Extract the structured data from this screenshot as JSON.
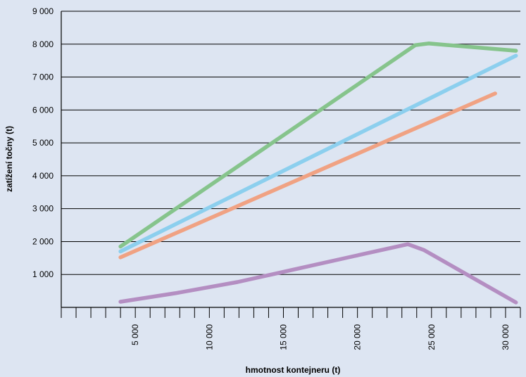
{
  "chart_data": {
    "type": "line",
    "title": "",
    "xlabel": "hmotnost kontejneru (t)",
    "ylabel": "zatížení točny (t)",
    "xlim": [
      0,
      31000
    ],
    "ylim": [
      0,
      9000
    ],
    "x_tick_labels": [
      {
        "value": 5000,
        "label": "5 000"
      },
      {
        "value": 10000,
        "label": "10 000"
      },
      {
        "value": 15000,
        "label": "15 000"
      },
      {
        "value": 20000,
        "label": "20 000"
      },
      {
        "value": 25000,
        "label": "25 000"
      },
      {
        "value": 30000,
        "label": "30 000"
      }
    ],
    "y_tick_labels": [
      {
        "value": 1000,
        "label": "1 000"
      },
      {
        "value": 2000,
        "label": "2 000"
      },
      {
        "value": 3000,
        "label": "3 000"
      },
      {
        "value": 4000,
        "label": "4 000"
      },
      {
        "value": 5000,
        "label": "5 000"
      },
      {
        "value": 6000,
        "label": "6 000"
      },
      {
        "value": 7000,
        "label": "7 000"
      },
      {
        "value": 8000,
        "label": "8 000"
      },
      {
        "value": 9000,
        "label": "9 000"
      }
    ],
    "grid": "horizontal",
    "legend": "none",
    "series": [
      {
        "color": "#86c48c",
        "points": [
          [
            4000,
            1850
          ],
          [
            23900,
            7970
          ],
          [
            24800,
            8020
          ],
          [
            30700,
            7800
          ]
        ]
      },
      {
        "color": "#8ccfee",
        "points": [
          [
            4000,
            1700
          ],
          [
            30700,
            7650
          ]
        ]
      },
      {
        "color": "#f0a283",
        "points": [
          [
            4000,
            1520
          ],
          [
            29300,
            6500
          ]
        ]
      },
      {
        "color": "#b48ec2",
        "points": [
          [
            4000,
            170
          ],
          [
            7700,
            430
          ],
          [
            11900,
            770
          ],
          [
            16000,
            1180
          ],
          [
            19800,
            1560
          ],
          [
            23400,
            1920
          ],
          [
            24500,
            1740
          ],
          [
            30700,
            150
          ]
        ]
      }
    ]
  }
}
